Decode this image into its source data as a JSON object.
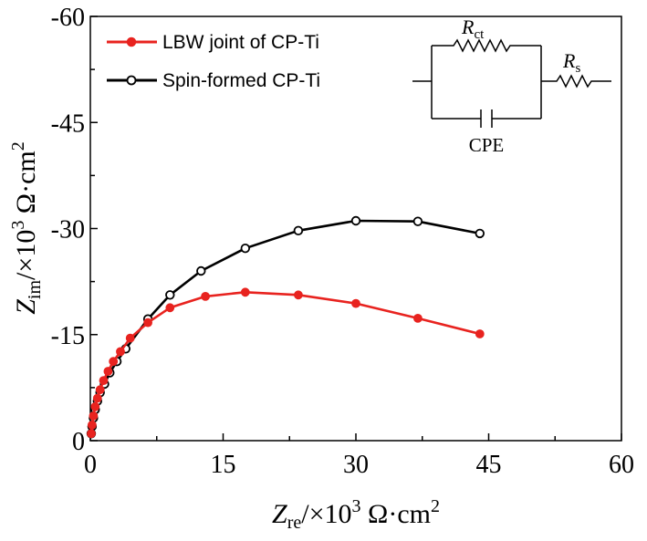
{
  "chart_data": {
    "type": "scatter",
    "xlabel": {
      "main": "Z",
      "sub": "re",
      "rest": "/×10",
      "sup": "3",
      "unit": " Ω·cm",
      "unit_sup": "2"
    },
    "ylabel": {
      "main": "Z",
      "sub": "im",
      "rest": "/×10",
      "sup": "3",
      "unit": " Ω·cm",
      "unit_sup": "2"
    },
    "xlim": [
      0,
      60
    ],
    "ylim": [
      0,
      -60
    ],
    "x_ticks": [
      "0",
      "15",
      "30",
      "45",
      "60"
    ],
    "y_ticks": [
      "0",
      "-15",
      "-30",
      "-45",
      "-60"
    ],
    "x_tick_values": [
      0,
      15,
      30,
      45,
      60
    ],
    "y_tick_values": [
      0,
      -15,
      -30,
      -45,
      -60
    ],
    "grid": false,
    "legend_position": "top-left",
    "series": [
      {
        "name": "LBW joint of CP-Ti",
        "color": "#e8231f",
        "marker": "filled-circle",
        "x": [
          0.1,
          0.2,
          0.35,
          0.55,
          0.8,
          1.1,
          1.5,
          2.0,
          2.6,
          3.4,
          4.5,
          6.5,
          9.0,
          13.0,
          17.5,
          23.5,
          30.0,
          37.0,
          44.0
        ],
        "y": [
          -1.0,
          -2.2,
          -3.5,
          -4.8,
          -6.0,
          -7.2,
          -8.5,
          -9.8,
          -11.2,
          -12.6,
          -14.5,
          -16.7,
          -18.8,
          -20.4,
          -21.0,
          -20.6,
          -19.4,
          -17.3,
          -15.1
        ]
      },
      {
        "name": "Spin-formed CP-Ti",
        "color": "#000000",
        "marker": "open-circle",
        "x": [
          0.1,
          0.2,
          0.35,
          0.55,
          0.8,
          1.1,
          1.6,
          2.2,
          3.0,
          4.0,
          6.5,
          9.0,
          12.5,
          17.5,
          23.5,
          30.0,
          37.0,
          44.0
        ],
        "y": [
          -1.0,
          -2.0,
          -3.2,
          -4.4,
          -5.6,
          -6.8,
          -8.0,
          -9.6,
          -11.2,
          -13.0,
          -17.2,
          -20.6,
          -24.0,
          -27.2,
          -29.7,
          -31.1,
          -31.0,
          -29.3
        ]
      }
    ],
    "inset_circuit": {
      "labels": {
        "rct_main": "R",
        "rct_sub": "ct",
        "rs_main": "R",
        "rs_sub": "s",
        "cpe": "CPE"
      }
    }
  }
}
